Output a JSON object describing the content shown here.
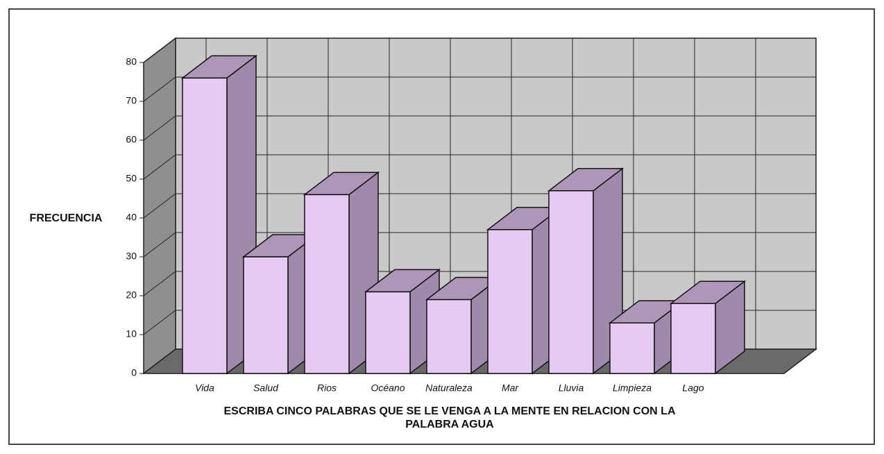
{
  "chart_data": {
    "type": "bar3d",
    "ylabel": "FRECUENCIA",
    "xlabel": [
      "ESCRIBA CINCO PALABRAS QUE SE LE VENGA A LA MENTE EN RELACION CON LA",
      "PALABRA AGUA"
    ],
    "categories": [
      "Vida",
      "Salud",
      "Rios",
      "Océano",
      "Naturaleza",
      "Mar",
      "Lluvia",
      "Limpieza",
      "Lago"
    ],
    "values": [
      76,
      30,
      46,
      21,
      19,
      37,
      47,
      13,
      18
    ],
    "color": "#e6caf2",
    "ylim": [
      0,
      80
    ],
    "yticks": [
      0,
      10,
      20,
      30,
      40,
      50,
      60,
      70,
      80
    ],
    "grid": true
  }
}
